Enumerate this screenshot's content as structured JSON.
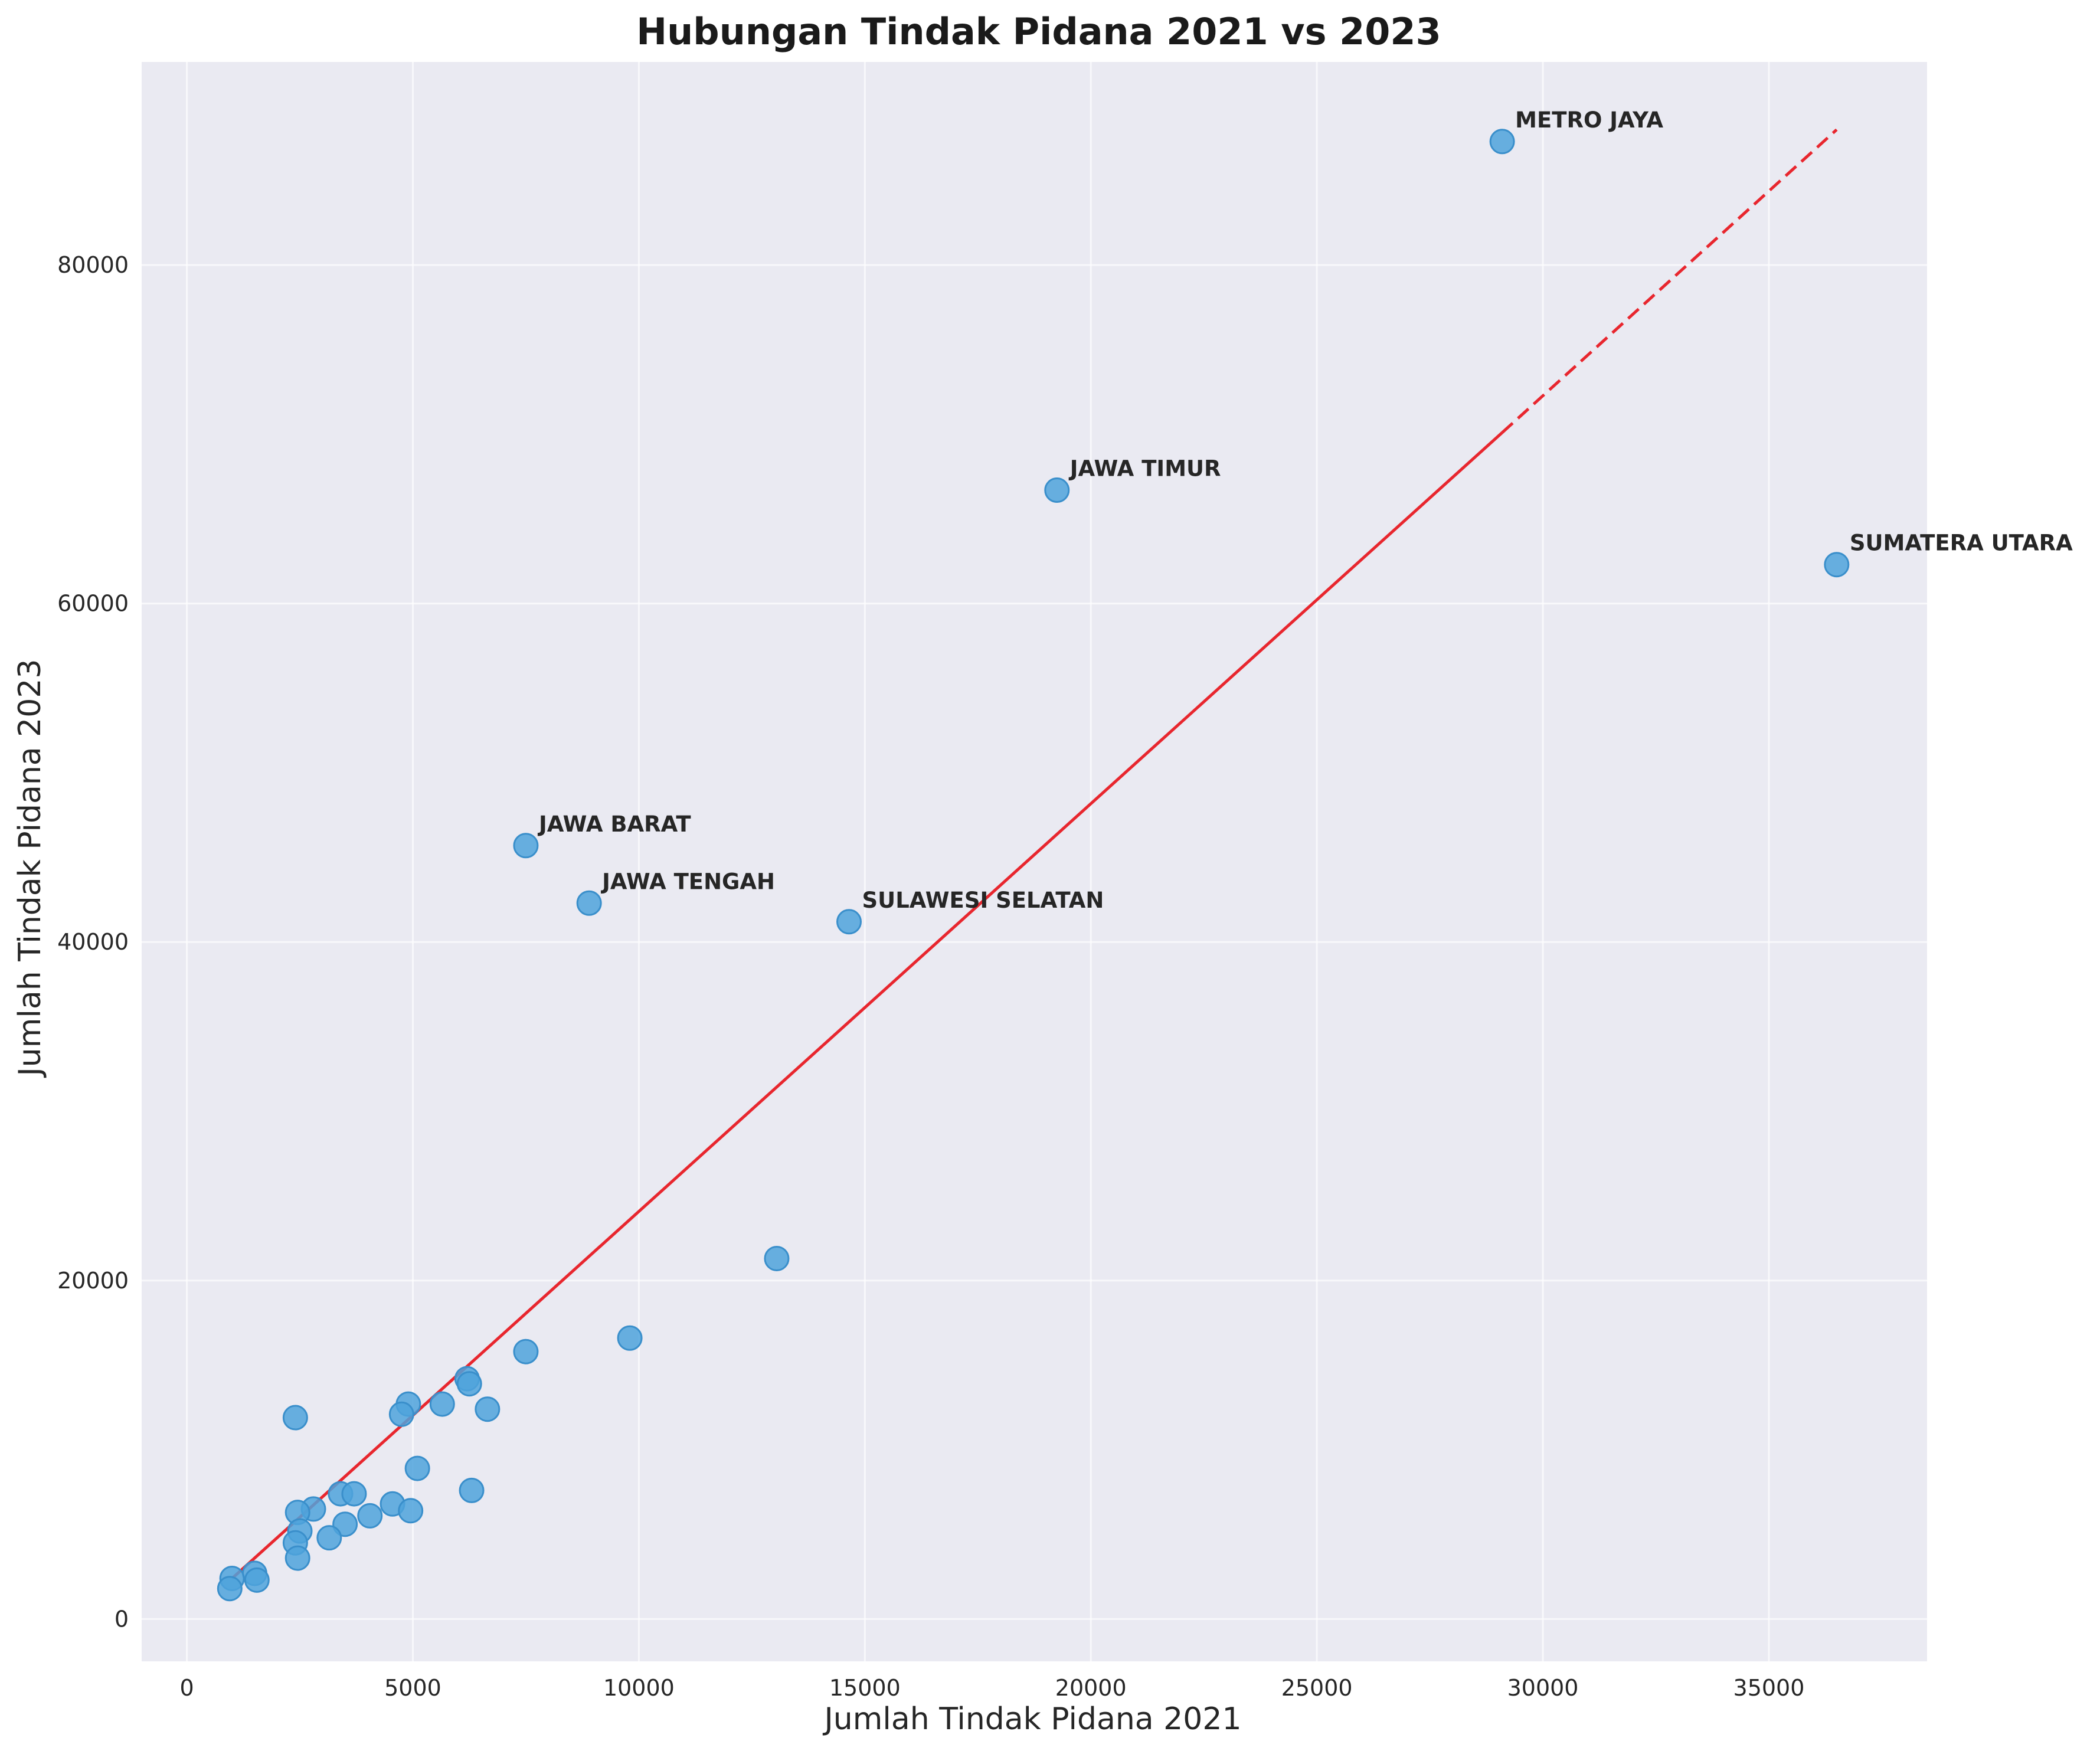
{
  "chart_data": {
    "type": "scatter",
    "title": "Hubungan Tindak Pidana 2021 vs 2023",
    "xlabel": "Jumlah Tindak Pidana 2021",
    "ylabel": "Jumlah Tindak Pidana 2023",
    "xlim": [
      -1000,
      38500
    ],
    "ylim": [
      -2500,
      92000
    ],
    "xticks": [
      0,
      5000,
      10000,
      15000,
      20000,
      25000,
      30000,
      35000
    ],
    "xtick_labels": [
      "0",
      "5000",
      "10000",
      "15000",
      "20000",
      "25000",
      "30000",
      "35000"
    ],
    "yticks": [
      0,
      20000,
      40000,
      60000,
      80000
    ],
    "ytick_labels": [
      "0",
      "20000",
      "40000",
      "60000",
      "80000"
    ],
    "grid": true,
    "background_color": "#eaeaf2",
    "point_color": "#4fa3dc",
    "trend_color": "#e8262e",
    "points": [
      {
        "x": 29100,
        "y": 87300,
        "label": "METRO JAYA"
      },
      {
        "x": 19250,
        "y": 66700,
        "label": "JAWA TIMUR"
      },
      {
        "x": 36500,
        "y": 62300,
        "label": "SUMATERA UTARA"
      },
      {
        "x": 7500,
        "y": 45700,
        "label": "JAWA BARAT"
      },
      {
        "x": 8900,
        "y": 42300,
        "label": "JAWA TENGAH"
      },
      {
        "x": 14650,
        "y": 41200,
        "label": "SULAWESI SELATAN"
      },
      {
        "x": 13050,
        "y": 21300
      },
      {
        "x": 9800,
        "y": 16600
      },
      {
        "x": 7500,
        "y": 15800
      },
      {
        "x": 6200,
        "y": 14200
      },
      {
        "x": 6250,
        "y": 13900
      },
      {
        "x": 4900,
        "y": 12700
      },
      {
        "x": 5650,
        "y": 12700
      },
      {
        "x": 4750,
        "y": 12100
      },
      {
        "x": 6650,
        "y": 12400
      },
      {
        "x": 2400,
        "y": 11900
      },
      {
        "x": 5100,
        "y": 8900
      },
      {
        "x": 6300,
        "y": 7600
      },
      {
        "x": 3400,
        "y": 7400
      },
      {
        "x": 3700,
        "y": 7400
      },
      {
        "x": 4550,
        "y": 6800
      },
      {
        "x": 2800,
        "y": 6500
      },
      {
        "x": 2450,
        "y": 6300
      },
      {
        "x": 4950,
        "y": 6400
      },
      {
        "x": 4050,
        "y": 6100
      },
      {
        "x": 3500,
        "y": 5600
      },
      {
        "x": 2500,
        "y": 5200
      },
      {
        "x": 3150,
        "y": 4800
      },
      {
        "x": 2400,
        "y": 4500
      },
      {
        "x": 2450,
        "y": 3600
      },
      {
        "x": 1500,
        "y": 2700
      },
      {
        "x": 1000,
        "y": 2400
      },
      {
        "x": 1550,
        "y": 2300
      },
      {
        "x": 950,
        "y": 1800
      }
    ],
    "trend_line": {
      "solid": {
        "x": [
          1000,
          29100
        ],
        "y": [
          2400,
          70100
        ]
      },
      "dashed": {
        "x": [
          29100,
          36500
        ],
        "y": [
          70100,
          88000
        ]
      }
    }
  }
}
